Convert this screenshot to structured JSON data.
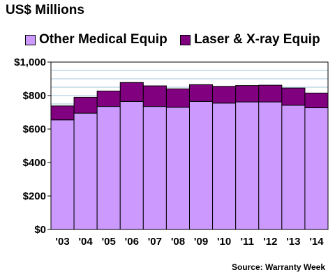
{
  "chart_data": {
    "type": "bar",
    "stacked": true,
    "title": "US$ Millions",
    "source": "Source: Warranty Week",
    "categories": [
      "'03",
      "'04",
      "'05",
      "'06",
      "'07",
      "'08",
      "'09",
      "'10",
      "'11",
      "'12",
      "'13",
      "'14"
    ],
    "series": [
      {
        "name": "Other Medical Equip",
        "color": "#cc99ff",
        "values": [
          655,
          695,
          735,
          765,
          735,
          730,
          765,
          755,
          762,
          762,
          742,
          727
        ]
      },
      {
        "name": "Laser & X-ray Equip",
        "color": "#800080",
        "values": [
          83,
          95,
          92,
          113,
          123,
          110,
          100,
          100,
          98,
          100,
          103,
          88
        ]
      }
    ],
    "ylim": [
      0,
      1000
    ],
    "yticks": [
      0,
      200,
      400,
      600,
      800,
      1000
    ],
    "ytick_labels": [
      "$0",
      "$200",
      "$400",
      "$600",
      "$800",
      "$1,000"
    ],
    "grid": true,
    "legend_position": "top"
  }
}
